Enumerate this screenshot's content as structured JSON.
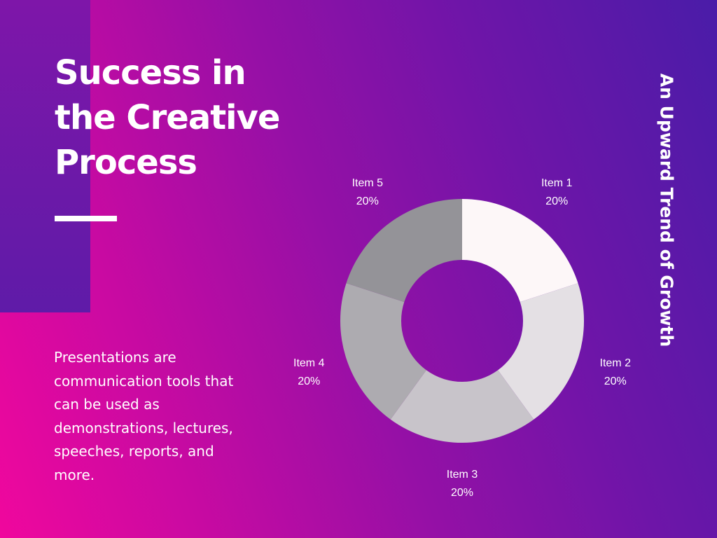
{
  "slide": {
    "title_lines": [
      "Success in",
      "the Creative",
      "Process"
    ],
    "body": "Presentations are communication tools that can be used as demonstrations, lectures, speeches, reports, and more.",
    "side_title": "An Upward Trend of Growth"
  },
  "colors": {
    "background_start": "#f0079d",
    "background_end": "#4a1ca8",
    "panel": "#6a19a8",
    "text": "#ffffff"
  },
  "chart_data": {
    "type": "pie",
    "variant": "donut",
    "categories": [
      "Item 1",
      "Item 2",
      "Item 3",
      "Item 4",
      "Item 5"
    ],
    "values": [
      20,
      20,
      20,
      20,
      20
    ],
    "value_labels": [
      "20%",
      "20%",
      "20%",
      "20%",
      "20%"
    ],
    "colors": [
      "#fdf7f8",
      "#e4e0e4",
      "#c8c4ca",
      "#adabb0",
      "#949398"
    ]
  }
}
